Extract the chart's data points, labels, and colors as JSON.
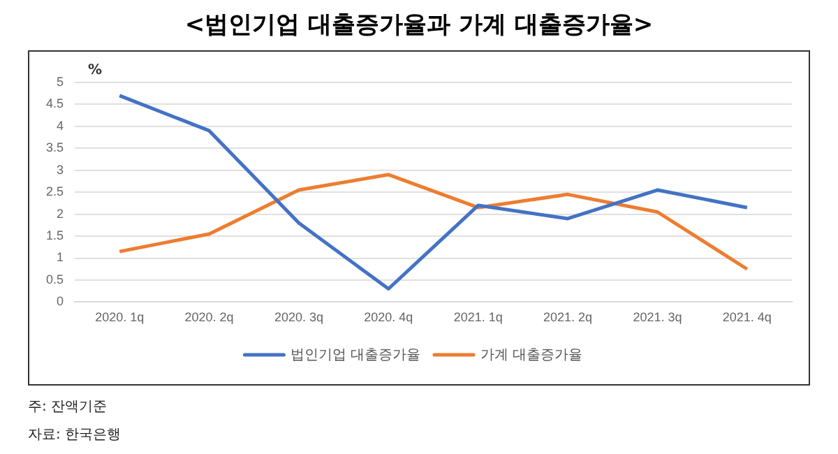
{
  "chart_data": {
    "type": "line",
    "title": "<법인기업 대출증가율과 가계 대출증가율>",
    "ylabel": "%",
    "categories": [
      "2020. 1q",
      "2020. 2q",
      "2020. 3q",
      "2020. 4q",
      "2021. 1q",
      "2021. 2q",
      "2021. 3q",
      "2021. 4q"
    ],
    "series": [
      {
        "name": "법인기업 대출증가율",
        "color": "#4472c4",
        "values": [
          4.7,
          3.9,
          1.8,
          0.3,
          2.2,
          1.9,
          2.55,
          2.15
        ]
      },
      {
        "name": "가계 대출증가율",
        "color": "#ed7d31",
        "values": [
          1.15,
          1.55,
          2.55,
          2.9,
          2.15,
          2.45,
          2.05,
          0.75
        ]
      }
    ],
    "ylim": [
      0,
      5
    ],
    "yticks": [
      0,
      0.5,
      1,
      1.5,
      2,
      2.5,
      3,
      3.5,
      4,
      4.5,
      5
    ],
    "grid": "y",
    "legend": "bottom",
    "marker": "none",
    "line_style": "solid",
    "annotations": [
      "주: 잔액기준",
      "자료: 한국은행"
    ]
  }
}
